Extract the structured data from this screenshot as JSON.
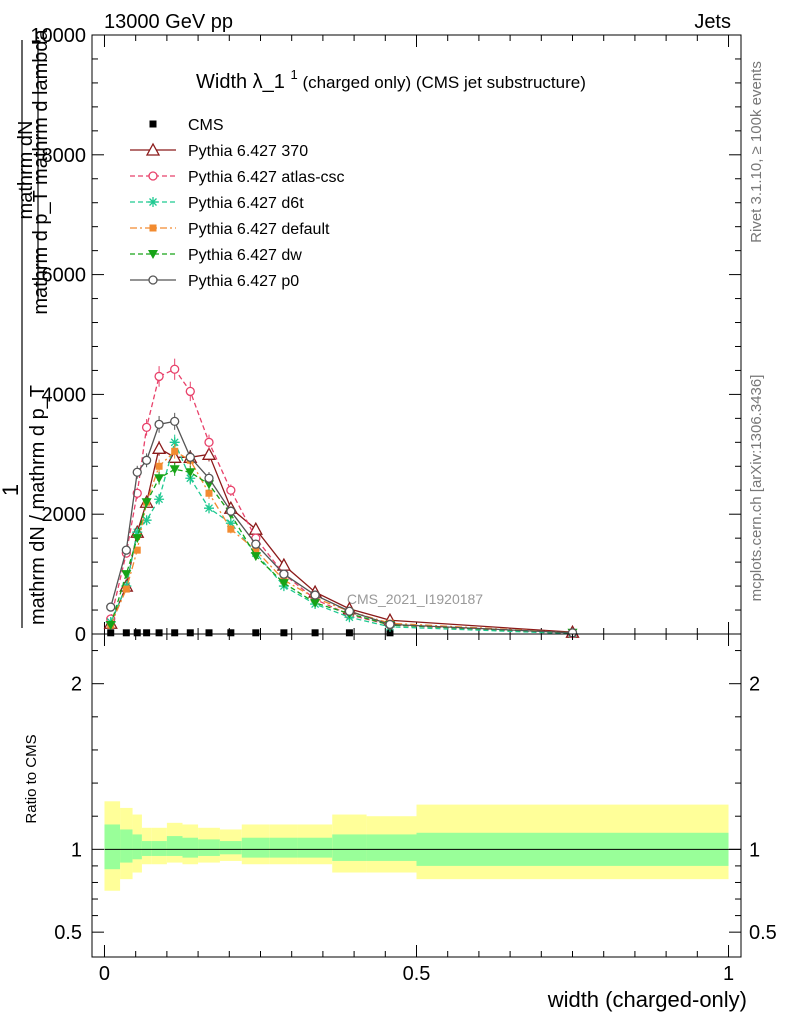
{
  "header": {
    "left": "13000 GeV pp",
    "right": "Jets"
  },
  "side_labels": {
    "rivet": "Rivet 3.1.10, ≥ 100k events",
    "mcplots": "mcplots.cern.ch [arXiv:1306.3436]"
  },
  "watermark": "CMS_2021_I1920187",
  "colors": {
    "cms": "#000000",
    "p370": "#8b1a1a",
    "atlas_csc": "#e8416a",
    "d6t": "#1fc991",
    "default": "#f28b30",
    "dw": "#17a317",
    "p0": "#555555",
    "band_outer": "#ffff99",
    "band_inner": "#99ff99"
  },
  "chart_data": [
    {
      "type": "line",
      "panel": "main",
      "title_main": "Width λ_1",
      "title_sup": "1",
      "title_rest": "(charged only) (CMS jet substructure)",
      "ylabel_top": "1",
      "ylabel_num": "mathrm dN",
      "ylabel_den": "mathrm d p_T mathrm d lambda",
      "ylabel_left": "mathrm dN / mathrm d p_T",
      "ylabel_left_sub": "T",
      "xlim": [
        -0.02,
        1.02
      ],
      "ylim": [
        0,
        10000
      ],
      "yticks": [
        0,
        2000,
        4000,
        6000,
        8000,
        10000
      ],
      "ytick_labels": [
        "0",
        "2000",
        "4000",
        "6000",
        "8000",
        "10000"
      ],
      "legend_position": "top-left",
      "x": [
        0.01,
        0.035,
        0.0525,
        0.0675,
        0.0875,
        0.1125,
        0.1375,
        0.1675,
        0.2025,
        0.2425,
        0.2875,
        0.3375,
        0.3925,
        0.4575,
        0.75
      ],
      "series": [
        {
          "name": "CMS",
          "key": "cms",
          "marker": "square",
          "values": [
            20,
            20,
            20,
            20,
            20,
            20,
            20,
            20,
            20,
            20,
            20,
            20,
            20,
            20,
            20
          ]
        },
        {
          "name": "Pythia 6.427 370",
          "key": "p370",
          "marker": "triangle-open",
          "dash": "",
          "values": [
            180,
            800,
            1700,
            2200,
            3100,
            2950,
            2950,
            3000,
            2100,
            1750,
            1150,
            700,
            420,
            230,
            30
          ]
        },
        {
          "name": "Pythia 6.427 atlas-csc",
          "key": "atlas_csc",
          "marker": "circle-open",
          "dash": "5,3",
          "values": [
            250,
            1350,
            2350,
            3450,
            4300,
            4420,
            4050,
            3200,
            2400,
            1600,
            1000,
            580,
            320,
            150,
            10
          ]
        },
        {
          "name": "Pythia 6.427 d6t",
          "key": "d6t",
          "marker": "star",
          "dash": "5,3",
          "values": [
            200,
            800,
            1700,
            1900,
            2250,
            3200,
            2600,
            2100,
            1850,
            1350,
            800,
            500,
            280,
            120,
            5
          ]
        },
        {
          "name": "Pythia 6.427 default",
          "key": "default",
          "marker": "square-filled",
          "dash": "7,3,2,3",
          "values": [
            150,
            750,
            1400,
            2200,
            2800,
            3050,
            2900,
            2350,
            1750,
            1400,
            900,
            600,
            380,
            180,
            20
          ]
        },
        {
          "name": "Pythia 6.427 dw",
          "key": "dw",
          "marker": "triangle-down",
          "dash": "5,3",
          "values": [
            150,
            1000,
            1600,
            2200,
            2600,
            2750,
            2700,
            2500,
            2000,
            1300,
            850,
            520,
            340,
            150,
            20
          ]
        },
        {
          "name": "Pythia 6.427 p0",
          "key": "p0",
          "marker": "circle-open",
          "dash": "",
          "values": [
            450,
            1400,
            2700,
            2900,
            3500,
            3550,
            2950,
            2600,
            2050,
            1500,
            1000,
            650,
            380,
            160,
            20
          ]
        }
      ]
    },
    {
      "type": "area",
      "panel": "ratio",
      "ylabel": "Ratio to CMS",
      "xlabel": "width (charged-only)",
      "xlim": [
        -0.02,
        1.02
      ],
      "ylim": [
        0.35,
        2.3
      ],
      "yticks": [
        0.5,
        1,
        2
      ],
      "ytick_labels": [
        "0.5",
        "1",
        "2"
      ],
      "xticks": [
        0,
        0.5,
        1
      ],
      "xtick_labels": [
        "0",
        "0.5",
        "1"
      ],
      "bin_edges": [
        0,
        0.025,
        0.045,
        0.06,
        0.075,
        0.1,
        0.125,
        0.15,
        0.185,
        0.22,
        0.265,
        0.31,
        0.365,
        0.42,
        0.5,
        1.0
      ],
      "band_outer_low": [
        0.75,
        0.82,
        0.86,
        0.91,
        0.91,
        0.92,
        0.91,
        0.92,
        0.93,
        0.91,
        0.91,
        0.91,
        0.86,
        0.86,
        0.82
      ],
      "band_outer_high": [
        1.29,
        1.25,
        1.21,
        1.13,
        1.13,
        1.16,
        1.15,
        1.13,
        1.12,
        1.15,
        1.15,
        1.15,
        1.21,
        1.2,
        1.27
      ],
      "band_inner_low": [
        0.88,
        0.92,
        0.94,
        0.96,
        0.96,
        0.96,
        0.95,
        0.96,
        0.97,
        0.95,
        0.95,
        0.95,
        0.93,
        0.93,
        0.9
      ],
      "band_inner_high": [
        1.15,
        1.12,
        1.09,
        1.05,
        1.05,
        1.08,
        1.07,
        1.06,
        1.05,
        1.07,
        1.07,
        1.07,
        1.09,
        1.09,
        1.1
      ],
      "reference": 1
    }
  ]
}
